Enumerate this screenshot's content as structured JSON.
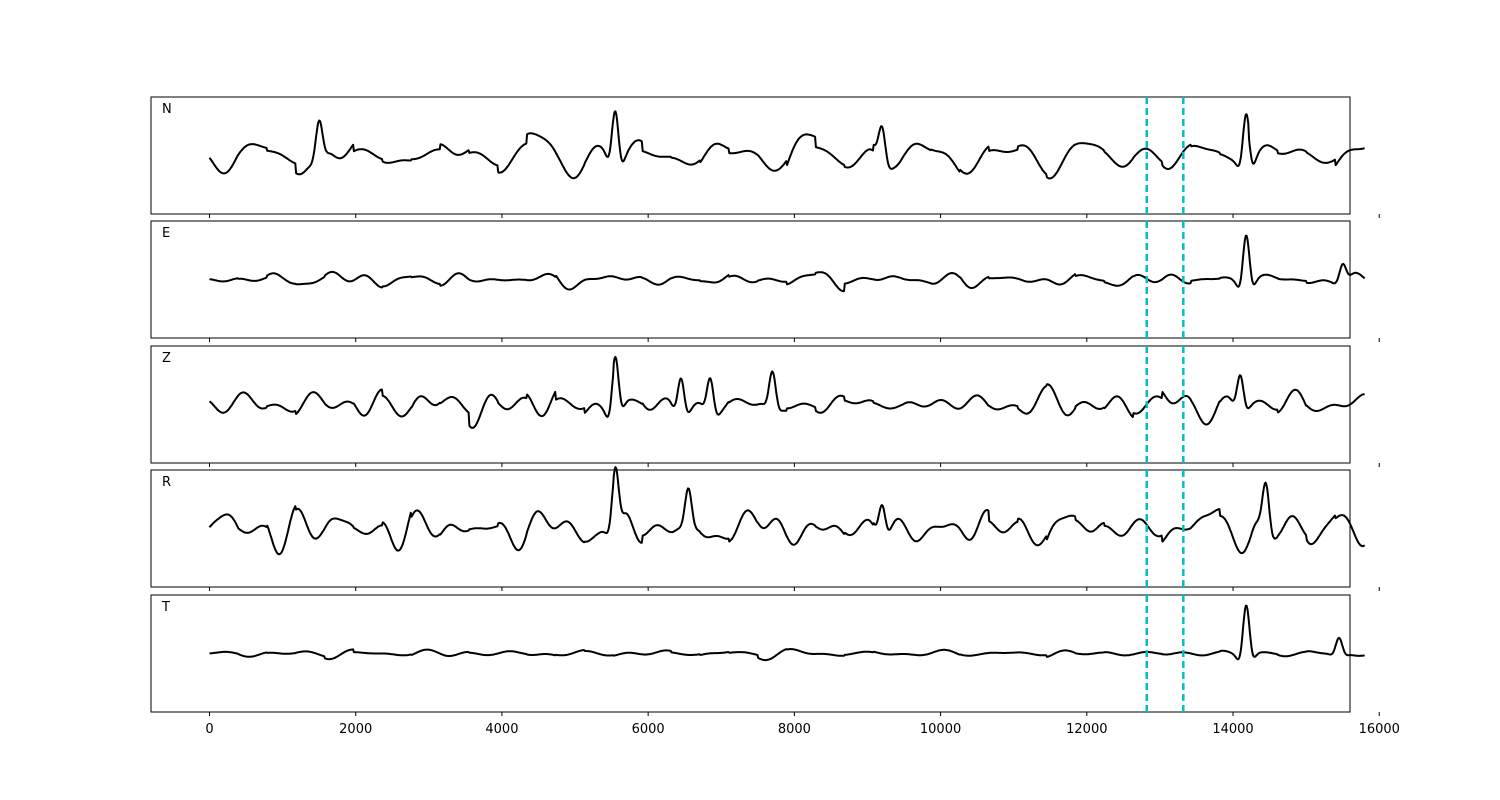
{
  "chart_data": {
    "type": "line",
    "title": "",
    "xlabel": "",
    "ylabel": "",
    "xlim": [
      -800,
      15600
    ],
    "xticks": [
      0,
      2000,
      4000,
      6000,
      8000,
      10000,
      12000,
      14000,
      16000
    ],
    "x_range": [
      0,
      15800
    ],
    "grid": false,
    "line_color": "#000000",
    "marker_color": "#00c0c0",
    "markers": [
      12820,
      13320
    ],
    "traces": [
      {
        "name": "N",
        "amplitude": 0.45,
        "seed": 11,
        "events": [
          {
            "x": 5550,
            "amp": 1.0
          },
          {
            "x": 14180,
            "amp": 0.95
          },
          {
            "x": 1500,
            "amp": 0.6
          },
          {
            "x": 9200,
            "amp": 0.55
          }
        ]
      },
      {
        "name": "E",
        "amplitude": 0.18,
        "seed": 23,
        "events": [
          {
            "x": 14180,
            "amp": 1.0
          },
          {
            "x": 15500,
            "amp": 0.3
          }
        ]
      },
      {
        "name": "Z",
        "amplitude": 0.38,
        "seed": 37,
        "events": [
          {
            "x": 5550,
            "amp": 1.0
          },
          {
            "x": 6450,
            "amp": 0.65
          },
          {
            "x": 6850,
            "amp": 0.6
          },
          {
            "x": 7700,
            "amp": 0.6
          },
          {
            "x": 14100,
            "amp": 0.6
          }
        ]
      },
      {
        "name": "R",
        "amplitude": 0.38,
        "seed": 41,
        "events": [
          {
            "x": 5550,
            "amp": 1.0
          },
          {
            "x": 14450,
            "amp": 0.75
          },
          {
            "x": 6550,
            "amp": 0.6
          },
          {
            "x": 9200,
            "amp": 0.55
          }
        ]
      },
      {
        "name": "T",
        "amplitude": 0.13,
        "seed": 53,
        "events": [
          {
            "x": 14180,
            "amp": 1.0
          },
          {
            "x": 15450,
            "amp": 0.3
          }
        ]
      }
    ]
  }
}
